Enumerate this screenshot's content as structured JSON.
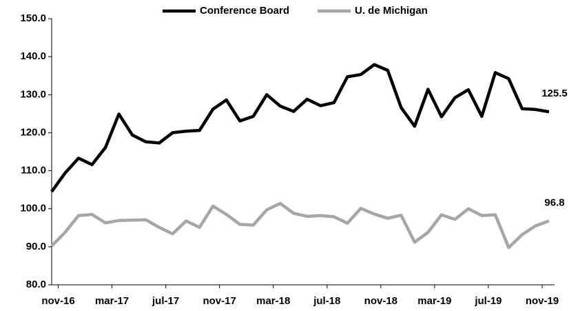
{
  "chart_data": {
    "type": "line",
    "categories": [
      null,
      "nov-16",
      null,
      null,
      null,
      "mar-17",
      null,
      null,
      null,
      "jul-17",
      null,
      null,
      null,
      "nov-17",
      null,
      null,
      null,
      "mar-18",
      null,
      null,
      null,
      "jul-18",
      null,
      null,
      null,
      "nov-18",
      null,
      null,
      null,
      "mar-19",
      null,
      null,
      null,
      "jul-19",
      null,
      null,
      null,
      "nov-19"
    ],
    "series": [
      {
        "name": "Conference Board",
        "color": "#000000",
        "values": [
          104.5,
          109.4,
          113.3,
          111.6,
          116.1,
          124.9,
          119.4,
          117.6,
          117.3,
          120.0,
          120.4,
          120.6,
          126.2,
          128.6,
          123.1,
          124.3,
          130.0,
          127.0,
          125.6,
          128.8,
          127.1,
          127.9,
          134.7,
          135.3,
          137.9,
          136.4,
          126.6,
          121.7,
          131.4,
          124.2,
          129.2,
          131.3,
          124.3,
          135.8,
          134.2,
          126.3,
          126.1,
          125.5
        ]
      },
      {
        "name": "U. de Michigan",
        "color": "#a6a6a6",
        "values": [
          90.2,
          93.8,
          98.2,
          98.5,
          96.3,
          96.9,
          97.0,
          97.1,
          95.1,
          93.4,
          96.8,
          95.1,
          100.7,
          98.5,
          95.9,
          95.7,
          99.7,
          101.4,
          98.8,
          98.0,
          98.2,
          97.9,
          96.2,
          100.1,
          98.6,
          97.5,
          98.3,
          91.2,
          93.8,
          98.4,
          97.2,
          100.0,
          98.2,
          98.4,
          89.8,
          93.2,
          95.5,
          96.8
        ]
      }
    ],
    "ylim": [
      80,
      150
    ],
    "yticks": [
      {
        "value": 80,
        "label": "80.0"
      },
      {
        "value": 90,
        "label": "90.0"
      },
      {
        "value": 100,
        "label": "100.0"
      },
      {
        "value": 110,
        "label": "110.0"
      },
      {
        "value": 120,
        "label": "120.0"
      },
      {
        "value": 130,
        "label": "130.0"
      },
      {
        "value": 140,
        "label": "140.0"
      },
      {
        "value": 150,
        "label": "150.0"
      }
    ],
    "grid": false,
    "legend": "top"
  }
}
